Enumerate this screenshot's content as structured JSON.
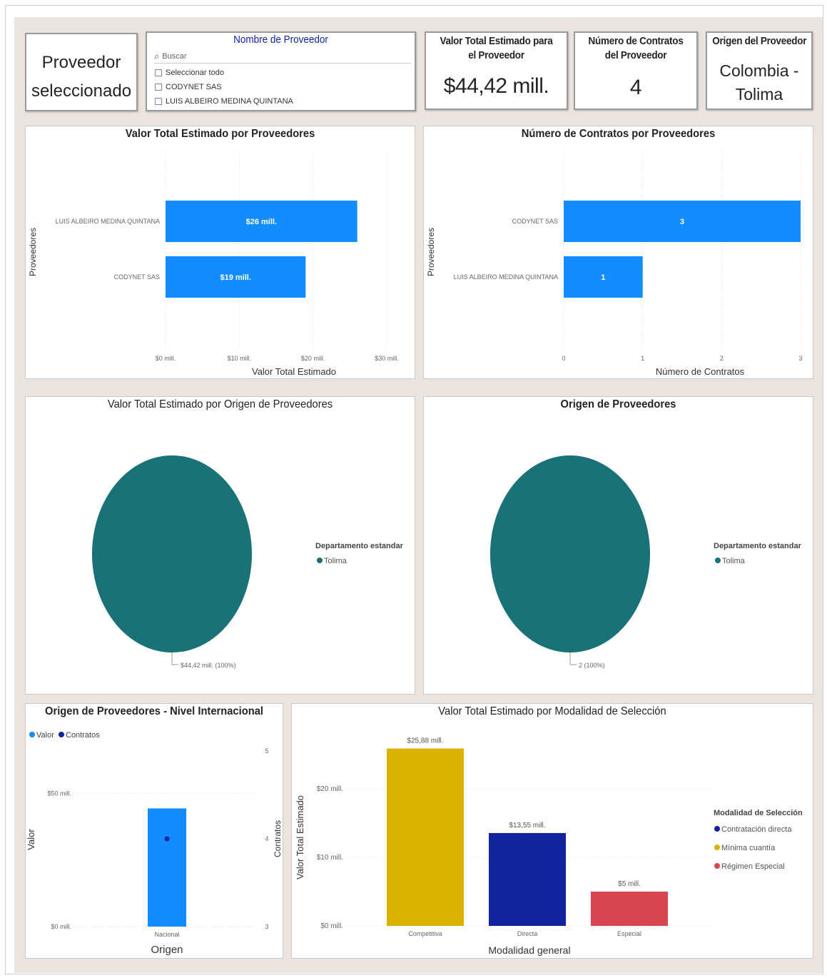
{
  "selected_card": {
    "line1": "Proveedor",
    "line2": "seleccionado"
  },
  "slicer": {
    "title": "Nombre de Proveedor",
    "search_placeholder": "Buscar",
    "items": [
      "Seleccionar todo",
      "CODYNET SAS",
      "LUIS ALBEIRO MEDINA QUINTANA"
    ]
  },
  "kpis": [
    {
      "title": "Valor Total Estimado para el Proveedor",
      "value": "$44,42 mill."
    },
    {
      "title": "Número de Contratos del Proveedor",
      "value": "4"
    },
    {
      "title": "Origen del Proveedor",
      "value_line1": "Colombia -",
      "value_line2": "Tolima"
    }
  ],
  "colors": {
    "bar_blue": "#118dff",
    "teal": "#197278",
    "navy": "#12239e",
    "gold": "#d9b300",
    "red": "#d64550"
  },
  "chart_data": [
    {
      "type": "bar",
      "orientation": "horizontal",
      "title": "Valor Total Estimado por Proveedores",
      "xlabel": "Valor Total Estimado",
      "ylabel": "Proveedores",
      "categories": [
        "LUIS ALBEIRO MEDINA QUINTANA",
        "CODYNET SAS"
      ],
      "values": [
        26,
        19
      ],
      "data_labels": [
        "$26 mill.",
        "$19 mill."
      ],
      "xlim": [
        0,
        30
      ],
      "xticks": [
        "$0 mill.",
        "$10 mill.",
        "$20 mill.",
        "$30 mill."
      ],
      "color": "#118dff"
    },
    {
      "type": "bar",
      "orientation": "horizontal",
      "title": "Número de Contratos por Proveedores",
      "xlabel": "Número de Contratos",
      "ylabel": "Proveedores",
      "categories": [
        "CODYNET SAS",
        "LUIS ALBEIRO MEDINA QUINTANA"
      ],
      "values": [
        3,
        1
      ],
      "data_labels": [
        "3",
        "1"
      ],
      "xlim": [
        0,
        3
      ],
      "xticks": [
        "0",
        "1",
        "2",
        "3"
      ],
      "color": "#118dff"
    },
    {
      "type": "pie",
      "title": "Valor Total Estimado por Origen de Proveedores",
      "legend_title": "Departamento estandar",
      "categories": [
        "Tolima"
      ],
      "values": [
        44.42
      ],
      "data_labels": [
        "$44,42 mill. (100%)"
      ],
      "color": "#197278"
    },
    {
      "type": "pie",
      "title": "Origen de Proveedores",
      "legend_title": "Departamento estandar",
      "categories": [
        "Tolima"
      ],
      "values": [
        2
      ],
      "data_labels": [
        "2 (100%)"
      ],
      "color": "#197278"
    },
    {
      "type": "bar",
      "title": "Origen de Proveedores - Nivel Internacional",
      "xlabel": "Origen",
      "ylabel": "Valor",
      "y2label": "Contratos",
      "categories": [
        "Nacional"
      ],
      "series": [
        {
          "name": "Valor",
          "values": [
            44.42
          ],
          "color": "#118dff"
        },
        {
          "name": "Contratos",
          "values": [
            4
          ],
          "color": "#12239e"
        }
      ],
      "ylim": [
        0,
        55
      ],
      "yticks": [
        "$0 mill.",
        "$50 mill."
      ],
      "y2lim": [
        3,
        5
      ],
      "y2ticks": [
        "3",
        "4",
        "5"
      ]
    },
    {
      "type": "bar",
      "title": "Valor Total Estimado por Modalidad de Selección",
      "xlabel": "Modalidad general",
      "ylabel": "Valor Total Estimado",
      "categories": [
        "Competitiva",
        "Directa",
        "Especial"
      ],
      "values": [
        25.88,
        13.55,
        5
      ],
      "data_labels": [
        "$25,88 mill.",
        "$13,55 mill.",
        "$5 mill."
      ],
      "colors": [
        "#d9b300",
        "#12239e",
        "#d64550"
      ],
      "ylim": [
        0,
        27
      ],
      "yticks": [
        "$0 mill.",
        "$10 mill.",
        "$20 mill."
      ],
      "legend_title": "Modalidad de Selección",
      "legend": [
        {
          "name": "Contratación directa",
          "color": "#12239e"
        },
        {
          "name": "Mínima cuantía",
          "color": "#d9b300"
        },
        {
          "name": "Régimen Especial",
          "color": "#d64550"
        }
      ]
    }
  ]
}
